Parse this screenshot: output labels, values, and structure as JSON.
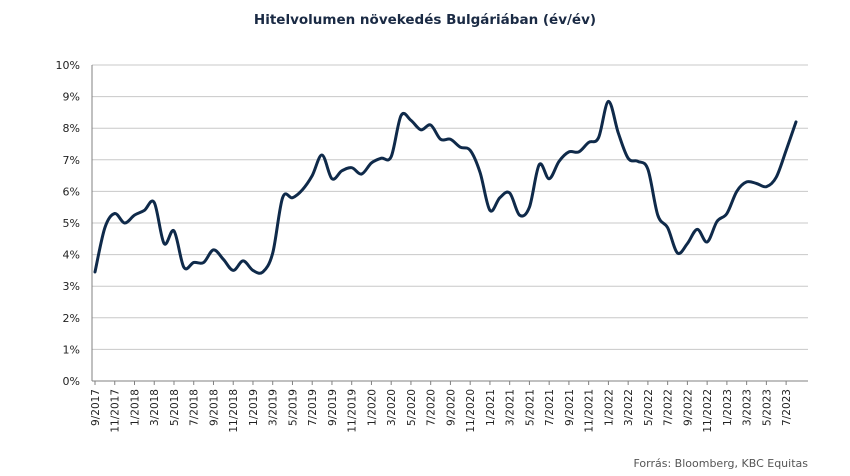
{
  "chart_data": {
    "type": "line",
    "title": "Hitelvolumen növekedés Bulgáriában (év/év)",
    "source": "Forrás: Bloomberg, KBC Equitas",
    "ylim": [
      0,
      10
    ],
    "yticks": [
      "0%",
      "1%",
      "2%",
      "3%",
      "4%",
      "5%",
      "6%",
      "7%",
      "8%",
      "9%",
      "10%"
    ],
    "xtick_labels": [
      "9/2017",
      "11/2017",
      "1/2018",
      "3/2018",
      "5/2018",
      "7/2018",
      "9/2018",
      "11/2018",
      "1/2019",
      "3/2019",
      "5/2019",
      "7/2019",
      "9/2019",
      "11/2019",
      "1/2020",
      "3/2020",
      "5/2020",
      "7/2020",
      "9/2020",
      "11/2020",
      "1/2021",
      "3/2021",
      "5/2021",
      "7/2021",
      "9/2021",
      "11/2021",
      "1/2022",
      "3/2022",
      "5/2022",
      "7/2022",
      "9/2022",
      "11/2022",
      "1/2023",
      "3/2023",
      "5/2023",
      "7/2023"
    ],
    "grid": true,
    "legend": "none",
    "colors": {
      "line": "#0f2a4a",
      "grid": "#c8c8c8"
    },
    "x": [
      "9/2017",
      "10/2017",
      "11/2017",
      "12/2017",
      "1/2018",
      "2/2018",
      "3/2018",
      "4/2018",
      "5/2018",
      "6/2018",
      "7/2018",
      "8/2018",
      "9/2018",
      "10/2018",
      "11/2018",
      "12/2018",
      "1/2019",
      "2/2019",
      "3/2019",
      "4/2019",
      "5/2019",
      "6/2019",
      "7/2019",
      "8/2019",
      "9/2019",
      "10/2019",
      "11/2019",
      "12/2019",
      "1/2020",
      "2/2020",
      "3/2020",
      "4/2020",
      "5/2020",
      "6/2020",
      "7/2020",
      "8/2020",
      "9/2020",
      "10/2020",
      "11/2020",
      "12/2020",
      "1/2021",
      "2/2021",
      "3/2021",
      "4/2021",
      "5/2021",
      "6/2021",
      "7/2021",
      "8/2021",
      "9/2021",
      "10/2021",
      "11/2021",
      "12/2021",
      "1/2022",
      "2/2022",
      "3/2022",
      "4/2022",
      "5/2022",
      "6/2022",
      "7/2022",
      "8/2022",
      "9/2022",
      "10/2022",
      "11/2022",
      "12/2022",
      "1/2023",
      "2/2023",
      "3/2023",
      "4/2023",
      "5/2023",
      "6/2023",
      "7/2023",
      "8/2023"
    ],
    "series": [
      {
        "values": [
          3.45,
          4.85,
          5.3,
          5.0,
          5.25,
          5.4,
          5.65,
          4.35,
          4.75,
          3.6,
          3.75,
          3.75,
          4.15,
          3.85,
          3.5,
          3.8,
          3.5,
          3.45,
          4.05,
          5.8,
          5.8,
          6.05,
          6.5,
          7.15,
          6.4,
          6.65,
          6.75,
          6.55,
          6.9,
          7.05,
          7.1,
          8.4,
          8.25,
          7.95,
          8.1,
          7.65,
          7.65,
          7.4,
          7.3,
          6.6,
          5.4,
          5.8,
          5.95,
          5.25,
          5.5,
          6.85,
          6.4,
          6.95,
          7.25,
          7.25,
          7.55,
          7.7,
          8.85,
          7.85,
          7.05,
          6.95,
          6.7,
          5.25,
          4.85,
          4.05,
          4.35,
          4.8,
          4.4,
          5.05,
          5.3,
          6.0,
          6.3,
          6.25,
          6.15,
          6.45,
          7.3,
          8.2
        ]
      }
    ]
  }
}
